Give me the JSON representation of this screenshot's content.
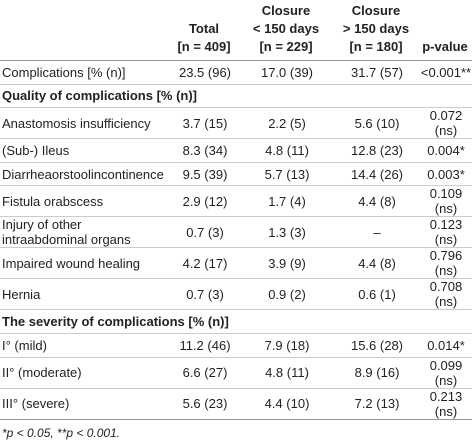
{
  "table": {
    "header": [
      [],
      [
        "Total",
        "[n = 409]"
      ],
      [
        "Closure",
        "< 150 days",
        "[n = 229]"
      ],
      [
        "Closure",
        "> 150 days",
        "[n = 180]"
      ],
      [
        "p-value"
      ]
    ],
    "rows": [
      {
        "cells": [
          "Complications [% (n)]",
          "23.5 (96)",
          "17.0 (39)",
          "31.7 (57)",
          "<0.001**"
        ]
      },
      {
        "section": "Quality of complications [% (n)]"
      },
      {
        "cells": [
          "Anastomosis insufficiency",
          "3.7 (15)",
          "2.2 (5)",
          "5.6 (10)",
          "0.072 (ns)"
        ]
      },
      {
        "cells": [
          "(Sub-) Ileus",
          "8.3 (34)",
          "4.8 (11)",
          "12.8 (23)",
          "0.004*"
        ]
      },
      {
        "cells": [
          "Diarrheaorstoolincontinence",
          "9.5 (39)",
          "5.7 (13)",
          "14.4 (26)",
          "0.003*"
        ]
      },
      {
        "cells": [
          "Fistula orabscess",
          "2.9 (12)",
          "1.7 (4)",
          "4.4 (8)",
          "0.109 (ns)"
        ]
      },
      {
        "cells": [
          "Injury of other intraabdominal organs",
          "0.7 (3)",
          "1.3 (3)",
          "–",
          "0.123 (ns)"
        ]
      },
      {
        "cells": [
          "Impaired wound healing",
          "4.2 (17)",
          "3.9 (9)",
          "4.4 (8)",
          "0.796 (ns)"
        ]
      },
      {
        "cells": [
          "Hernia",
          "0.7 (3)",
          "0.9 (2)",
          "0.6 (1)",
          "0.708 (ns)"
        ]
      },
      {
        "section": "The severity of complications [% (n)]"
      },
      {
        "cells": [
          "I° (mild)",
          "11.2 (46)",
          "7.9 (18)",
          "15.6 (28)",
          "0.014*"
        ]
      },
      {
        "cells": [
          "II° (moderate)",
          "6.6 (27)",
          "4.8 (11)",
          "8.9 (16)",
          "0.099 (ns)"
        ]
      },
      {
        "cells": [
          "III° (severe)",
          "5.6 (23)",
          "4.4 (10)",
          "7.2 (13)",
          "0.213 (ns)"
        ]
      }
    ],
    "footnote": "*p < 0.05, **p < 0.001."
  }
}
